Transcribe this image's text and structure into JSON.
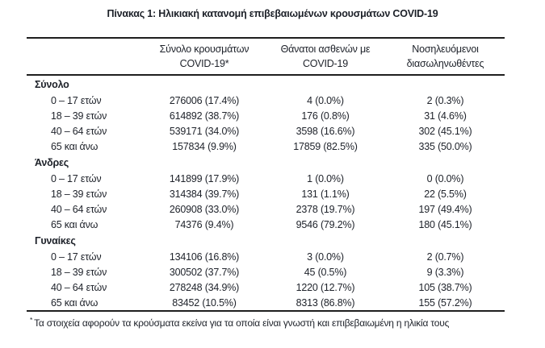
{
  "title": "Πίνακας 1: Ηλικιακή κατανομή επιβεβαιωμένων κρουσμάτων COVID-19",
  "table": {
    "col_headers": [
      {
        "line1": "Σύνολο κρουσμάτων",
        "line2": "COVID-19*"
      },
      {
        "line1": "Θάνατοι ασθενών με",
        "line2": "COVID-19"
      },
      {
        "line1": "Νοσηλευόμενοι",
        "line2": "διασωληνωθέντες"
      }
    ],
    "sections": [
      {
        "label": "Σύνολο",
        "rows": [
          {
            "label": "0 – 17 ετών",
            "cases": "276006 (17.4%)",
            "deaths": "4 (0.0%)",
            "intubated": "2 (0.3%)"
          },
          {
            "label": "18 – 39 ετών",
            "cases": "614892 (38.7%)",
            "deaths": "176 (0.8%)",
            "intubated": "31 (4.6%)"
          },
          {
            "label": "40 – 64 ετών",
            "cases": "539171 (34.0%)",
            "deaths": "3598 (16.6%)",
            "intubated": "302 (45.1%)"
          },
          {
            "label": "65 και άνω",
            "cases": "157834 (9.9%)",
            "deaths": "17859 (82.5%)",
            "intubated": "335 (50.0%)"
          }
        ]
      },
      {
        "label": "Άνδρες",
        "rows": [
          {
            "label": "0 – 17 ετών",
            "cases": "141899 (17.9%)",
            "deaths": "1 (0.0%)",
            "intubated": "0 (0.0%)"
          },
          {
            "label": "18 – 39 ετών",
            "cases": "314384 (39.7%)",
            "deaths": "131 (1.1%)",
            "intubated": "22 (5.5%)"
          },
          {
            "label": "40 – 64 ετών",
            "cases": "260908 (33.0%)",
            "deaths": "2378 (19.7%)",
            "intubated": "197 (49.4%)"
          },
          {
            "label": "65 και άνω",
            "cases": "74376 (9.4%)",
            "deaths": "9546 (79.2%)",
            "intubated": "180 (45.1%)"
          }
        ]
      },
      {
        "label": "Γυναίκες",
        "rows": [
          {
            "label": "0 – 17 ετών",
            "cases": "134106 (16.8%)",
            "deaths": "3 (0.0%)",
            "intubated": "2 (0.7%)"
          },
          {
            "label": "18 – 39 ετών",
            "cases": "300502 (37.7%)",
            "deaths": "45 (0.5%)",
            "intubated": "9 (3.3%)"
          },
          {
            "label": "40 – 64 ετών",
            "cases": "278248 (34.9%)",
            "deaths": "1220 (12.7%)",
            "intubated": "105 (38.7%)"
          },
          {
            "label": "65 και άνω",
            "cases": "83452 (10.5%)",
            "deaths": "8313 (86.8%)",
            "intubated": "155 (57.2%)"
          }
        ]
      }
    ]
  },
  "footnote": {
    "marker": "*",
    "text": "Τα στοιχεία αφορούν τα κρούσματα εκείνα για τα οποία είναι γνωστή και επιβεβαιωμένη η ηλικία τους"
  },
  "colors": {
    "text": "#20242c",
    "rule": "#1e1e1e",
    "background": "#ffffff"
  }
}
